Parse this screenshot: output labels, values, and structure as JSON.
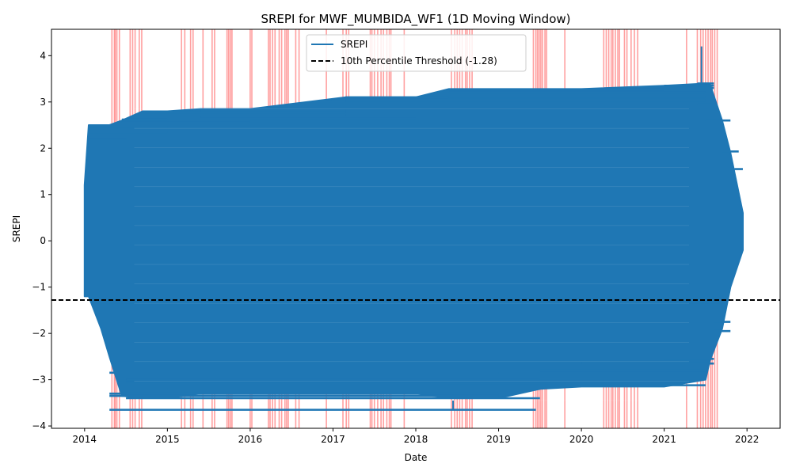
{
  "chart_data": {
    "type": "line",
    "title": "SREPI for MWF_MUMBIDA_WF1 (1D Moving Window)",
    "xlabel": "Date",
    "ylabel": "SREPI",
    "x_ticks": [
      "2014",
      "2015",
      "2016",
      "2017",
      "2018",
      "2019",
      "2020",
      "2021",
      "2022"
    ],
    "y_ticks": [
      -4,
      -3,
      -2,
      -1,
      0,
      1,
      2,
      3,
      4
    ],
    "xlim": [
      2013.6,
      2022.4
    ],
    "ylim": [
      -4.05,
      4.57
    ],
    "grid": false,
    "legend_position": "top-center",
    "series": [
      {
        "name": "SREPI",
        "color": "#1f77b4",
        "envelope": [
          {
            "x": 2014.0,
            "upper": 1.2,
            "lower": -1.2
          },
          {
            "x": 2014.05,
            "upper": 2.5,
            "lower": -1.2
          },
          {
            "x": 2014.2,
            "upper": 2.5,
            "lower": -1.9
          },
          {
            "x": 2014.3,
            "upper": 2.5,
            "lower": -2.5
          },
          {
            "x": 2014.45,
            "upper": 2.6,
            "lower": -3.35
          },
          {
            "x": 2014.7,
            "upper": 2.8,
            "lower": -3.4
          },
          {
            "x": 2015.0,
            "upper": 2.8,
            "lower": -3.4
          },
          {
            "x": 2015.4,
            "upper": 2.85,
            "lower": -3.3
          },
          {
            "x": 2016.0,
            "upper": 2.85,
            "lower": -3.3
          },
          {
            "x": 2017.15,
            "upper": 3.1,
            "lower": -3.3
          },
          {
            "x": 2018.0,
            "upper": 3.1,
            "lower": -3.3
          },
          {
            "x": 2018.4,
            "upper": 3.28,
            "lower": -3.4
          },
          {
            "x": 2019.0,
            "upper": 3.28,
            "lower": -3.4
          },
          {
            "x": 2019.5,
            "upper": 3.28,
            "lower": -3.2
          },
          {
            "x": 2020.0,
            "upper": 3.28,
            "lower": -3.15
          },
          {
            "x": 2021.0,
            "upper": 3.35,
            "lower": -3.15
          },
          {
            "x": 2021.5,
            "upper": 3.4,
            "lower": -3.0
          },
          {
            "x": 2021.55,
            "upper": 3.4,
            "lower": -2.6
          },
          {
            "x": 2021.7,
            "upper": 2.6,
            "lower": -1.9
          },
          {
            "x": 2021.8,
            "upper": 1.9,
            "lower": -1.0
          },
          {
            "x": 2021.95,
            "upper": 0.6,
            "lower": -0.2
          }
        ],
        "horizontal_traces": [
          {
            "y": 2.47,
            "x_start": 2014.05,
            "x_end": 2015.0
          },
          {
            "y": 2.35,
            "x_start": 2014.05,
            "x_end": 2015.0
          },
          {
            "y": 2.2,
            "x_start": 2014.05,
            "x_end": 2014.5
          },
          {
            "y": 2.62,
            "x_start": 2014.45,
            "x_end": 2015.0
          },
          {
            "y": 2.55,
            "x_start": 2014.45,
            "x_end": 2016.0
          },
          {
            "y": 2.78,
            "x_start": 2014.7,
            "x_end": 2017.15
          },
          {
            "y": 2.72,
            "x_start": 2014.7,
            "x_end": 2017.15
          },
          {
            "y": 2.82,
            "x_start": 2015.4,
            "x_end": 2017.15
          },
          {
            "y": 2.68,
            "x_start": 2015.4,
            "x_end": 2018.0
          },
          {
            "y": 2.6,
            "x_start": 2016.0,
            "x_end": 2018.0
          },
          {
            "y": 3.1,
            "x_start": 2017.15,
            "x_end": 2018.4
          },
          {
            "y": 3.02,
            "x_start": 2017.15,
            "x_end": 2021.5
          },
          {
            "y": 3.05,
            "x_start": 2017.15,
            "x_end": 2021.5
          },
          {
            "y": 3.27,
            "x_start": 2018.4,
            "x_end": 2021.0
          },
          {
            "y": 3.2,
            "x_start": 2018.4,
            "x_end": 2021.5
          },
          {
            "y": 3.12,
            "x_start": 2018.4,
            "x_end": 2021.5
          },
          {
            "y": 3.35,
            "x_start": 2021.0,
            "x_end": 2021.6
          },
          {
            "y": 3.3,
            "x_start": 2021.0,
            "x_end": 2021.6
          },
          {
            "y": 3.4,
            "x_start": 2021.4,
            "x_end": 2021.6
          },
          {
            "y": 2.95,
            "x_start": 2021.4,
            "x_end": 2021.6
          },
          {
            "y": 2.6,
            "x_start": 2021.5,
            "x_end": 2021.8
          },
          {
            "y": 1.93,
            "x_start": 2021.7,
            "x_end": 2021.9
          },
          {
            "y": 1.55,
            "x_start": 2021.85,
            "x_end": 2021.95
          },
          {
            "y": -1.75,
            "x_start": 2021.6,
            "x_end": 2021.8
          },
          {
            "y": -1.95,
            "x_start": 2021.6,
            "x_end": 2021.8
          },
          {
            "y": -2.55,
            "x_start": 2021.0,
            "x_end": 2021.6
          },
          {
            "y": -2.65,
            "x_start": 2020.0,
            "x_end": 2021.6
          },
          {
            "y": -2.8,
            "x_start": 2019.5,
            "x_end": 2021.5
          },
          {
            "y": -2.85,
            "x_start": 2014.3,
            "x_end": 2019.0
          },
          {
            "y": -3.0,
            "x_start": 2014.5,
            "x_end": 2019.5
          },
          {
            "y": -3.05,
            "x_start": 2014.5,
            "x_end": 2019.5
          },
          {
            "y": -3.12,
            "x_start": 2018.4,
            "x_end": 2021.5
          },
          {
            "y": -3.2,
            "x_start": 2015.0,
            "x_end": 2019.5
          },
          {
            "y": -3.3,
            "x_start": 2014.3,
            "x_end": 2019.0
          },
          {
            "y": -3.35,
            "x_start": 2014.3,
            "x_end": 2019.0
          },
          {
            "y": -3.4,
            "x_start": 2014.5,
            "x_end": 2019.5
          },
          {
            "y": -3.65,
            "x_start": 2014.3,
            "x_end": 2019.45
          }
        ],
        "spikes": [
          {
            "x": 2021.45,
            "y_from": 3.4,
            "y_to": 4.2
          },
          {
            "x": 2018.45,
            "y_from": -3.65,
            "y_to": -3.45
          }
        ]
      }
    ],
    "threshold": {
      "name": "10th Percentile Threshold (-1.28)",
      "value": -1.28,
      "color": "#000000"
    },
    "highlight_color": "#ff8080",
    "highlight_dates": [
      2014.33,
      2014.36,
      2014.37,
      2014.39,
      2014.42,
      2014.55,
      2014.58,
      2014.61,
      2014.66,
      2014.69,
      2015.17,
      2015.21,
      2015.28,
      2015.31,
      2015.43,
      2015.54,
      2015.57,
      2015.72,
      2015.74,
      2015.76,
      2015.78,
      2016.0,
      2016.02,
      2016.22,
      2016.24,
      2016.27,
      2016.3,
      2016.35,
      2016.38,
      2016.42,
      2016.44,
      2016.46,
      2016.55,
      2016.59,
      2016.92,
      2017.12,
      2017.16,
      2017.19,
      2017.45,
      2017.47,
      2017.5,
      2017.54,
      2017.58,
      2017.61,
      2017.65,
      2017.68,
      2017.7,
      2017.86,
      2018.43,
      2018.47,
      2018.5,
      2018.53,
      2018.56,
      2018.6,
      2018.62,
      2018.65,
      2018.68,
      2019.42,
      2019.45,
      2019.47,
      2019.49,
      2019.51,
      2019.53,
      2019.56,
      2019.58,
      2019.8,
      2020.27,
      2020.3,
      2020.33,
      2020.36,
      2020.38,
      2020.41,
      2020.44,
      2020.46,
      2020.52,
      2020.55,
      2020.6,
      2020.64,
      2020.68,
      2021.27,
      2021.4,
      2021.44,
      2021.47,
      2021.5,
      2021.53,
      2021.56,
      2021.58,
      2021.61,
      2021.64
    ]
  }
}
